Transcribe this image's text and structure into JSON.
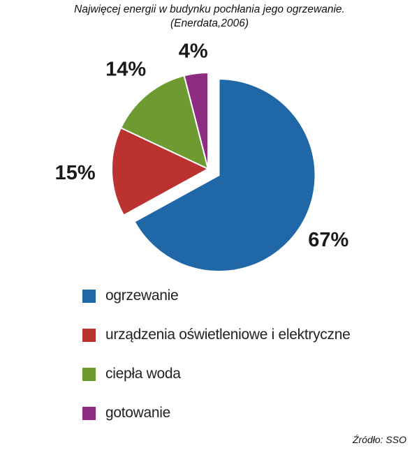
{
  "header": {
    "title": "Najwięcej energii w budynku pochłania jego ogrzewanie.",
    "subtitle": "(Enerdata,2006)"
  },
  "chart_data": {
    "type": "pie",
    "title": "Najwięcej energii w budynku pochłania jego ogrzewanie.",
    "subtitle": "(Enerdata,2006)",
    "categories": [
      "ogrzewanie",
      "urządzenia oświetleniowe i elektryczne",
      "ciepła woda",
      "gotowanie"
    ],
    "values": [
      67,
      15,
      14,
      4
    ],
    "value_labels": [
      "67%",
      "15%",
      "14%",
      "4%"
    ],
    "colors": [
      "#1F67A7",
      "#BC3230",
      "#6E9A32",
      "#8E2C82"
    ],
    "exploded": "ogrzewanie",
    "legend_position": "bottom-left",
    "direction": "clockwise from 12 o'clock"
  },
  "legend": {
    "items": [
      {
        "label": "ogrzewanie",
        "color": "#1F67A7"
      },
      {
        "label": "urządzenia oświetleniowe i elektryczne",
        "color": "#BC3230"
      },
      {
        "label": "ciepła woda",
        "color": "#6E9A32"
      },
      {
        "label": "gotowanie",
        "color": "#8E2C82"
      }
    ]
  },
  "footer": {
    "source": "Źródło: SSO"
  }
}
